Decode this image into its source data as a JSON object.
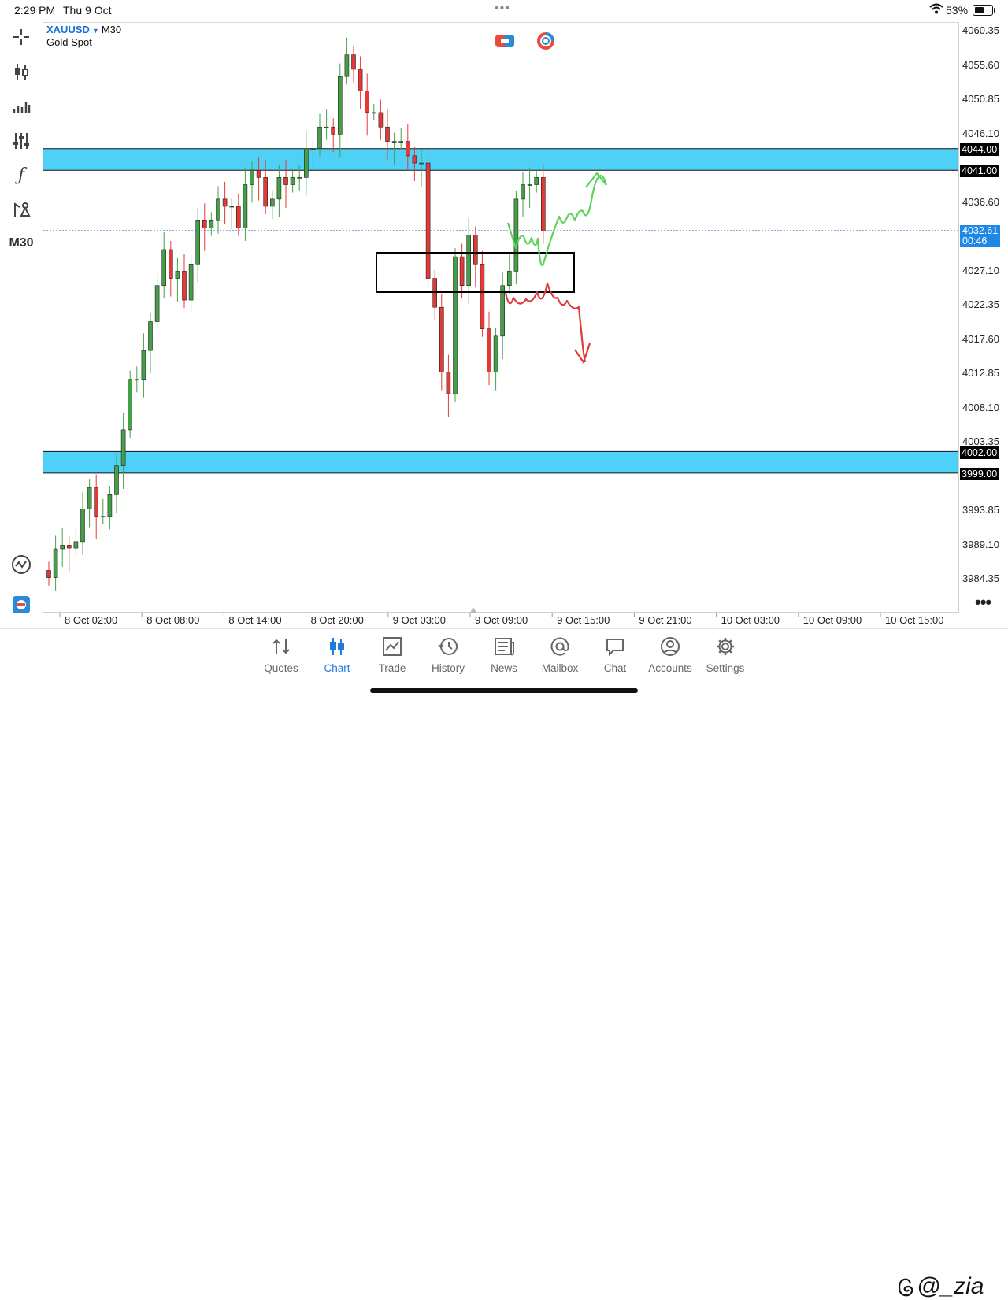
{
  "status_bar": {
    "time": "2:29 PM",
    "date": "Thu 9 Oct",
    "battery": "53%"
  },
  "chart": {
    "symbol": "XAUUSD",
    "timeframe": "M30",
    "description": "Gold Spot",
    "sidebar_timeframe": "M30",
    "y_labels": [
      "4060.35",
      "4055.60",
      "4050.85",
      "4046.10",
      "4036.60",
      "4027.10",
      "4022.35",
      "4017.60",
      "4012.85",
      "4008.10",
      "4003.35",
      "3993.85",
      "3989.10",
      "3984.35"
    ],
    "x_labels": [
      "8 Oct 02:00",
      "8 Oct 08:00",
      "8 Oct 14:00",
      "8 Oct 20:00",
      "9 Oct 03:00",
      "9 Oct 09:00",
      "9 Oct 15:00",
      "9 Oct 21:00",
      "10 Oct 03:00",
      "10 Oct 09:00",
      "10 Oct 15:00"
    ],
    "zone_labels": {
      "upper_top": "4044.00",
      "upper_bottom": "4041.00",
      "lower_top": "4002.00",
      "lower_bottom": "3999.00"
    },
    "current_price": "4032.61",
    "countdown": "00:46",
    "colors": {
      "bull": "#43a047",
      "bear": "#e53935",
      "zone": "#4fd1f7",
      "green_path": "#5bd45b",
      "red_path": "#e03a3a",
      "price_line": "#1e5bb8"
    }
  },
  "tabs": [
    {
      "label": "Quotes",
      "icon": "quotes-icon"
    },
    {
      "label": "Chart",
      "icon": "chart-icon"
    },
    {
      "label": "Trade",
      "icon": "trade-icon"
    },
    {
      "label": "History",
      "icon": "history-icon"
    },
    {
      "label": "News",
      "icon": "news-icon"
    },
    {
      "label": "Mailbox",
      "icon": "mailbox-icon"
    },
    {
      "label": "Chat",
      "icon": "chat-icon"
    },
    {
      "label": "Accounts",
      "icon": "accounts-icon"
    },
    {
      "label": "Settings",
      "icon": "settings-icon"
    }
  ],
  "active_tab": "Chart",
  "watermark": "@_zia"
}
